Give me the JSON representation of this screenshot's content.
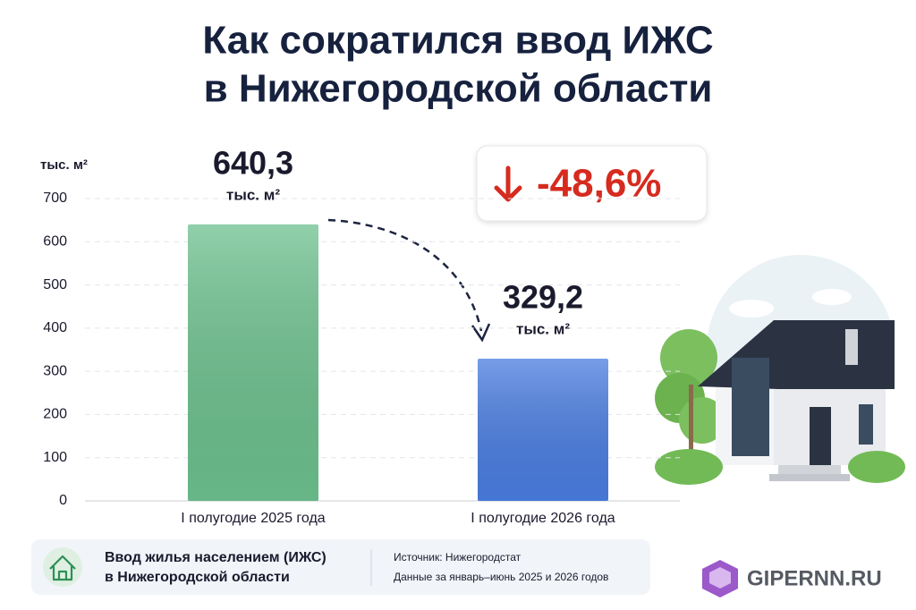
{
  "chart_data": {
    "type": "bar",
    "title": [
      "Как сократился ввод ИЖС",
      "в Нижегородской области"
    ],
    "y_label": "тыс. м²",
    "unit": "тыс. м²",
    "categories": [
      "I полугодие 2025 года",
      "I полугодие 2026 года"
    ],
    "values": [
      640.3,
      329.2
    ],
    "value_labels": [
      "640,3",
      "329,2"
    ],
    "colors": [
      "#6cc08e",
      "#4a7de0"
    ],
    "ylim": [
      0,
      700
    ],
    "yticks": [
      0,
      100,
      200,
      300,
      400,
      500,
      600,
      700
    ],
    "grid": true,
    "change": "-48,6%"
  },
  "footer": {
    "title": [
      "Ввод жилья населением (ИЖС)",
      "в Нижегородской области"
    ],
    "source": "Источник: Нижегородстат",
    "note": "Данные за январь–июнь 2025 и 2026 годов"
  },
  "brand": "GIPERNN.RU"
}
